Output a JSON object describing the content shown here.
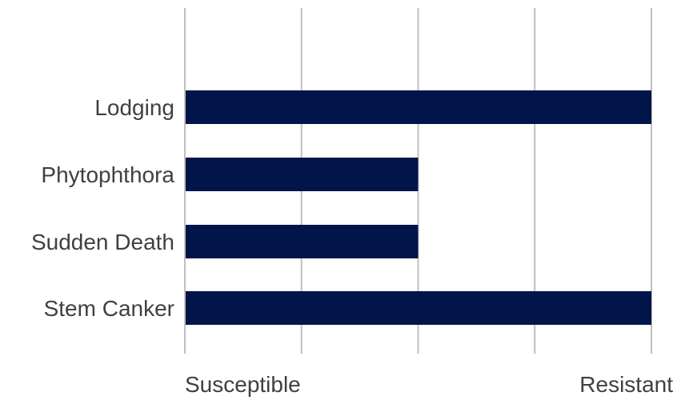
{
  "chart_data": {
    "type": "bar",
    "orientation": "horizontal",
    "categories": [
      "Lodging",
      "Phytophthora",
      "Sudden Death",
      "Stem Canker"
    ],
    "values": [
      4,
      2,
      2,
      4
    ],
    "xlim": [
      0,
      4
    ],
    "x_tick_labels": {
      "min": "Susceptible",
      "max": "Resistant"
    },
    "grid": true,
    "legend": "none",
    "bar_color": "#02154a",
    "grid_color": "#bfbfbf",
    "text_color": "#404040"
  }
}
